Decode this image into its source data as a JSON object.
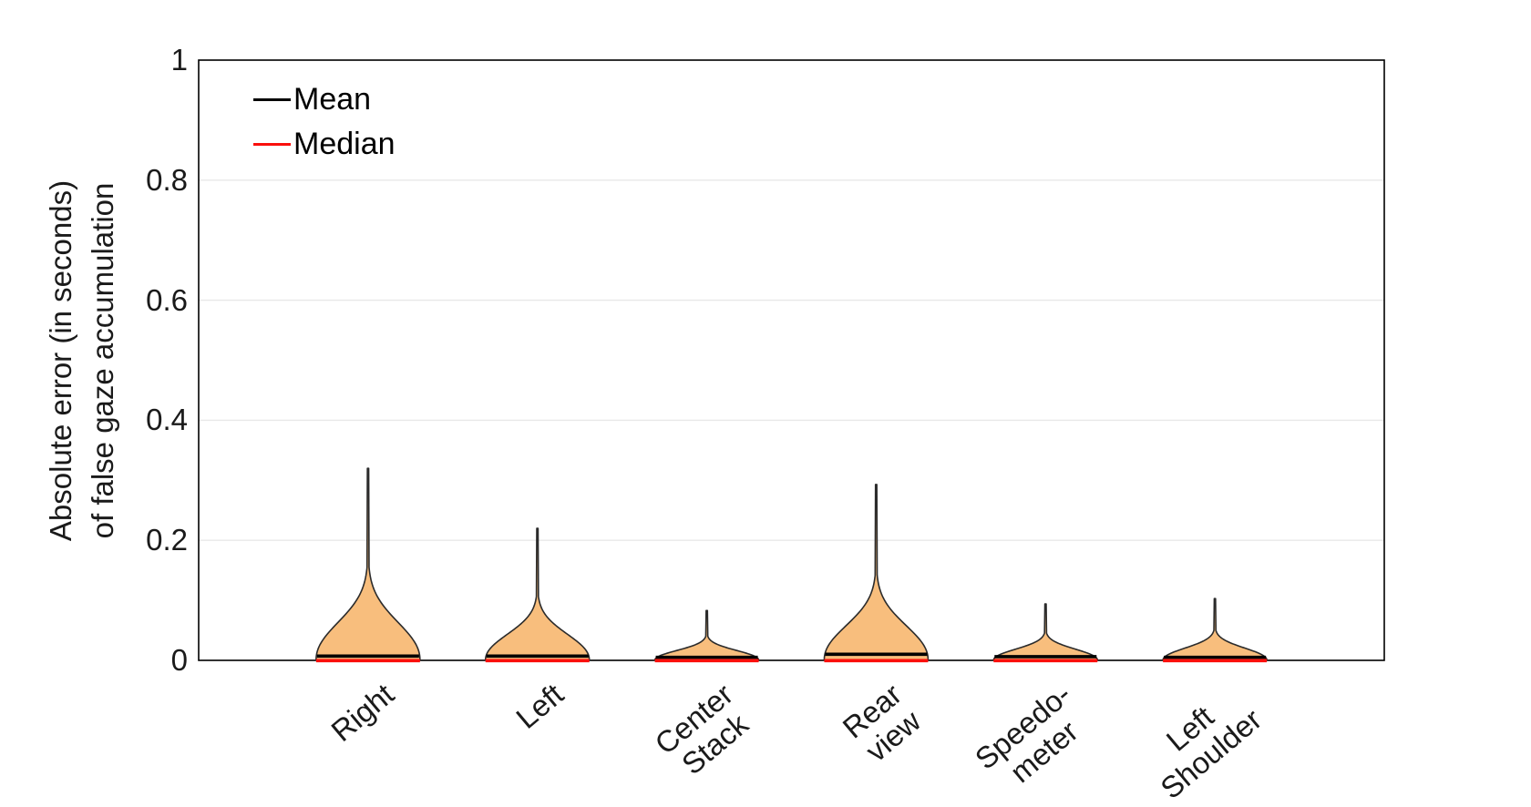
{
  "figure": {
    "background": "#ffffff"
  },
  "legend": {
    "items": [
      {
        "label": "Mean",
        "color": "#000000"
      },
      {
        "label": "Median",
        "color": "#fa0f0c"
      }
    ]
  },
  "y_axis": {
    "title_lines": [
      "Absolute error (in seconds)",
      "of false gaze accumulation"
    ],
    "ticks": [
      "0",
      "0.2",
      "0.4",
      "0.6",
      "0.8",
      "1"
    ],
    "range": [
      0,
      1
    ]
  },
  "x_axis": {
    "categories": [
      {
        "label": "Right",
        "lines": [
          "Right"
        ]
      },
      {
        "label": "Left",
        "lines": [
          "Left"
        ]
      },
      {
        "label": "Center Stack",
        "lines": [
          "Center",
          "Stack"
        ]
      },
      {
        "label": "Rear view",
        "lines": [
          "Rear",
          "view"
        ]
      },
      {
        "label": "Speedo-meter",
        "lines": [
          "Speedo-",
          "meter"
        ]
      },
      {
        "label": "Left Shoulder",
        "lines": [
          "Left",
          "Shoulder"
        ]
      }
    ]
  },
  "chart_data": {
    "type": "violin",
    "title": "",
    "xlabel": "",
    "ylabel": "Absolute error (in seconds) of false gaze accumulation",
    "ylim": [
      0,
      1
    ],
    "yticks": [
      0,
      0.2,
      0.4,
      0.6,
      0.8,
      1
    ],
    "grid": true,
    "legend": [
      "Mean",
      "Median"
    ],
    "legend_position": "top-left",
    "categories": [
      "Right",
      "Left",
      "Center Stack",
      "Rear view",
      "Speedo-meter",
      "Left Shoulder"
    ],
    "series": [
      {
        "name": "Right",
        "max": 0.32,
        "mean": 0.005,
        "median": 0.001
      },
      {
        "name": "Left",
        "max": 0.22,
        "mean": 0.005,
        "median": 0.001
      },
      {
        "name": "Center Stack",
        "max": 0.083,
        "mean": 0.003,
        "median": 0.001
      },
      {
        "name": "Rear view",
        "max": 0.293,
        "mean": 0.008,
        "median": 0.001
      },
      {
        "name": "Speedo-meter",
        "max": 0.094,
        "mean": 0.004,
        "median": 0.001
      },
      {
        "name": "Left Shoulder",
        "max": 0.103,
        "mean": 0.003,
        "median": 0.001
      }
    ],
    "violin_fill": "#F8BE7D",
    "violin_edge": "#2b2b2b",
    "mean_color": "#000000",
    "median_color": "#fa0f0c",
    "grid_color": "#e8e8e8",
    "axis_color": "#000000"
  }
}
